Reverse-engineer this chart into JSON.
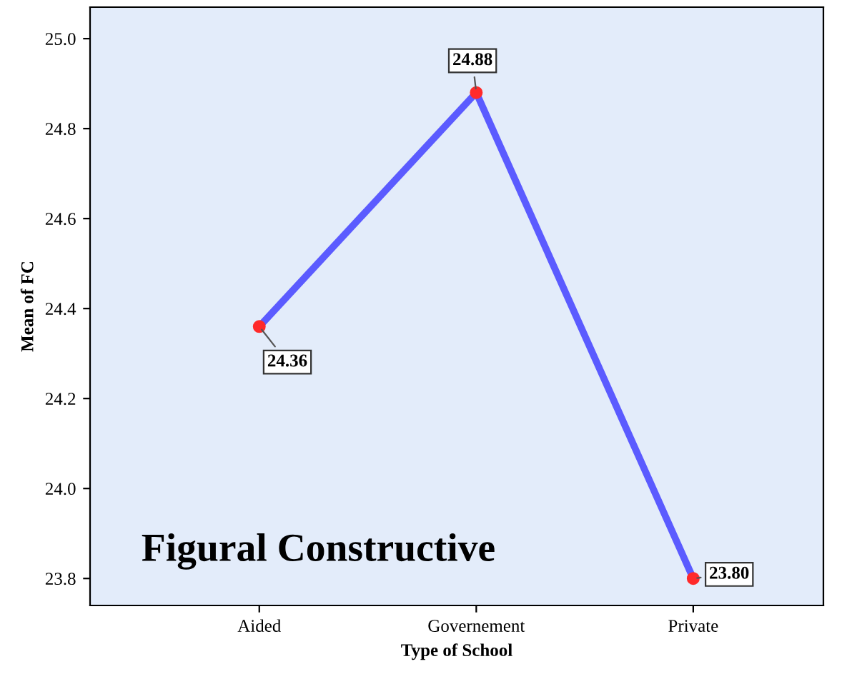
{
  "chart_data": {
    "type": "line",
    "categories": [
      "Aided",
      "Governement",
      "Private"
    ],
    "series": [
      {
        "color": "#5b5bff",
        "colors": [
          "#ff2a2a",
          "#ff2a2a",
          "#ff2a2a"
        ],
        "values": [
          24.36,
          24.88,
          23.8
        ],
        "value_labels": [
          "24.36",
          "24.88",
          "23.80"
        ]
      }
    ],
    "xlabel": "Type of School",
    "ylabel": "Mean of FC",
    "ylim": [
      23.74,
      25.07
    ],
    "yticks": [
      {
        "value": 23.8,
        "label": "23.8"
      },
      {
        "value": 24.0,
        "label": "24.0"
      },
      {
        "value": 24.2,
        "label": "24.2"
      },
      {
        "value": 24.4,
        "label": "24.4"
      },
      {
        "value": 24.6,
        "label": "24.6"
      },
      {
        "value": 24.8,
        "label": "24.8"
      },
      {
        "value": 25.0,
        "label": "25.0"
      }
    ],
    "annotations": [
      "Figural Constructive"
    ],
    "marker": "circle",
    "grid": false,
    "legend": false
  }
}
